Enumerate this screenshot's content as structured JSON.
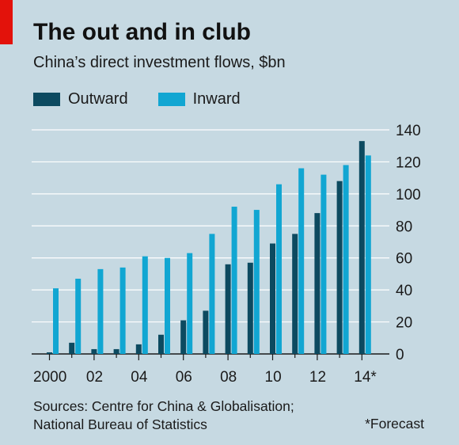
{
  "colors": {
    "background": "#c6d9e2",
    "outward": "#0c4a60",
    "inward": "#11a6d2",
    "gridline": "#ffffff",
    "accent": "#e3120b"
  },
  "title": "The out and in club",
  "subtitle": "China’s direct investment flows, $bn",
  "legend": [
    "Outward",
    "Inward"
  ],
  "sources": [
    "Sources: Centre for China & Globalisation;",
    "National Bureau of Statistics"
  ],
  "footnote": "*Forecast",
  "chart_data": {
    "type": "bar",
    "categories": [
      "2000",
      "01",
      "02",
      "03",
      "04",
      "05",
      "06",
      "07",
      "08",
      "09",
      "10",
      "11",
      "12",
      "13",
      "14*"
    ],
    "x_tick_labels": [
      "2000",
      "",
      "02",
      "",
      "04",
      "",
      "06",
      "",
      "08",
      "",
      "10",
      "",
      "12",
      "",
      "14*"
    ],
    "series": [
      {
        "name": "Outward",
        "values": [
          1,
          7,
          3,
          3,
          6,
          12,
          21,
          27,
          56,
          57,
          69,
          75,
          88,
          108,
          133
        ]
      },
      {
        "name": "Inward",
        "values": [
          41,
          47,
          53,
          54,
          61,
          60,
          63,
          75,
          92,
          90,
          106,
          116,
          112,
          118,
          124
        ]
      }
    ],
    "y_ticks": [
      0,
      20,
      40,
      60,
      80,
      100,
      120,
      140
    ],
    "ylim": [
      0,
      140
    ],
    "yaxis_position": "right",
    "grid": true
  }
}
